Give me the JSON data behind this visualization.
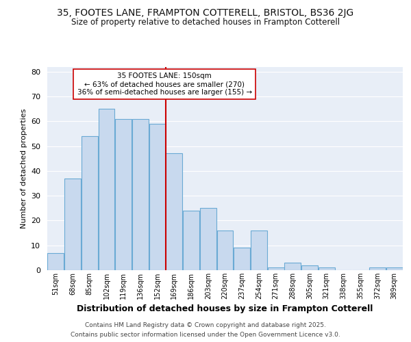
{
  "title1": "35, FOOTES LANE, FRAMPTON COTTERELL, BRISTOL, BS36 2JG",
  "title2": "Size of property relative to detached houses in Frampton Cotterell",
  "xlabel": "Distribution of detached houses by size in Frampton Cotterell",
  "ylabel": "Number of detached properties",
  "categories": [
    "51sqm",
    "68sqm",
    "85sqm",
    "102sqm",
    "119sqm",
    "136sqm",
    "152sqm",
    "169sqm",
    "186sqm",
    "203sqm",
    "220sqm",
    "237sqm",
    "254sqm",
    "271sqm",
    "288sqm",
    "305sqm",
    "321sqm",
    "338sqm",
    "355sqm",
    "372sqm",
    "389sqm"
  ],
  "values": [
    7,
    37,
    54,
    65,
    61,
    61,
    59,
    47,
    24,
    25,
    16,
    9,
    16,
    1,
    3,
    2,
    1,
    0,
    0,
    1,
    1
  ],
  "bar_color": "#c8d9ee",
  "bar_edge_color": "#6aaad4",
  "vline_color": "#cc0000",
  "vline_index": 6,
  "annotation_title": "35 FOOTES LANE: 150sqm",
  "annotation_line1": "← 63% of detached houses are smaller (270)",
  "annotation_line2": "36% of semi-detached houses are larger (155) →",
  "ylim": [
    0,
    82
  ],
  "yticks": [
    0,
    10,
    20,
    30,
    40,
    50,
    60,
    70,
    80
  ],
  "footer1": "Contains HM Land Registry data © Crown copyright and database right 2025.",
  "footer2": "Contains public sector information licensed under the Open Government Licence v3.0.",
  "bg_color": "#ffffff",
  "plot_bg_color": "#e8eef7",
  "grid_color": "#ffffff"
}
